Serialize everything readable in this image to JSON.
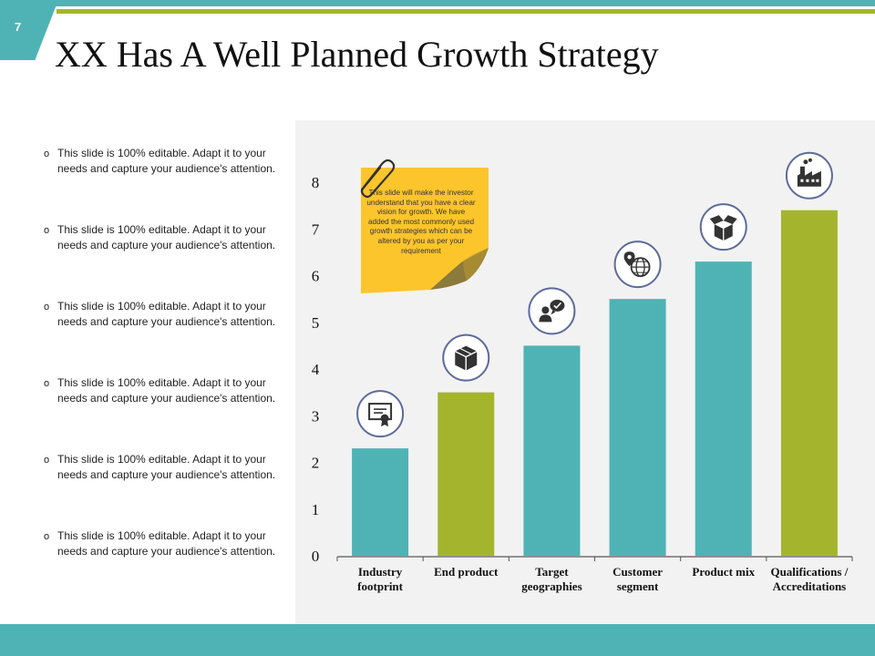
{
  "slide": {
    "number": "7",
    "title": "XX Has A Well Planned Growth Strategy"
  },
  "colors": {
    "teal": "#4fb3b5",
    "green": "#a4b52d",
    "sticky": "#fdc52c",
    "icon_ring": "#5d6b9a"
  },
  "bullets": [
    "This slide is 100% editable. Adapt it to your needs and capture your audience's attention.",
    "This slide is 100% editable. Adapt it to your needs and capture your audience's attention.",
    "This slide is 100% editable. Adapt it to your needs and capture your audience's attention.",
    "This slide is 100% editable. Adapt it to your needs and capture your audience's attention.",
    "This slide is 100% editable. Adapt it to your needs and capture your audience's attention.",
    "This slide is 100% editable. Adapt it to your needs and capture your audience's attention."
  ],
  "sticky_note": {
    "text": "This slide will make the investor understand that you have a clear vision for growth. We have added the most commonly used growth strategies which can be altered by you as per your requirement"
  },
  "chart_data": {
    "type": "bar",
    "categories": [
      [
        "Industry",
        "footprint"
      ],
      [
        "End product"
      ],
      [
        "Target",
        "geographies"
      ],
      [
        "Customer",
        "segment"
      ],
      [
        "Product mix"
      ],
      [
        "Qualifications /",
        "Accreditations"
      ]
    ],
    "values": [
      2.3,
      3.5,
      4.5,
      5.5,
      6.3,
      7.4
    ],
    "bar_colors": [
      "teal",
      "green",
      "teal",
      "teal",
      "teal",
      "green"
    ],
    "icons": [
      "certificate-icon",
      "box-icon",
      "feedback-icon",
      "globe-pin-icon",
      "open-box-icon",
      "factory-icon"
    ],
    "yticks": [
      "0",
      "1",
      "2",
      "3",
      "4",
      "5",
      "6",
      "7",
      "8"
    ],
    "ylim": [
      0,
      8
    ],
    "grid": false,
    "legend": "none"
  }
}
